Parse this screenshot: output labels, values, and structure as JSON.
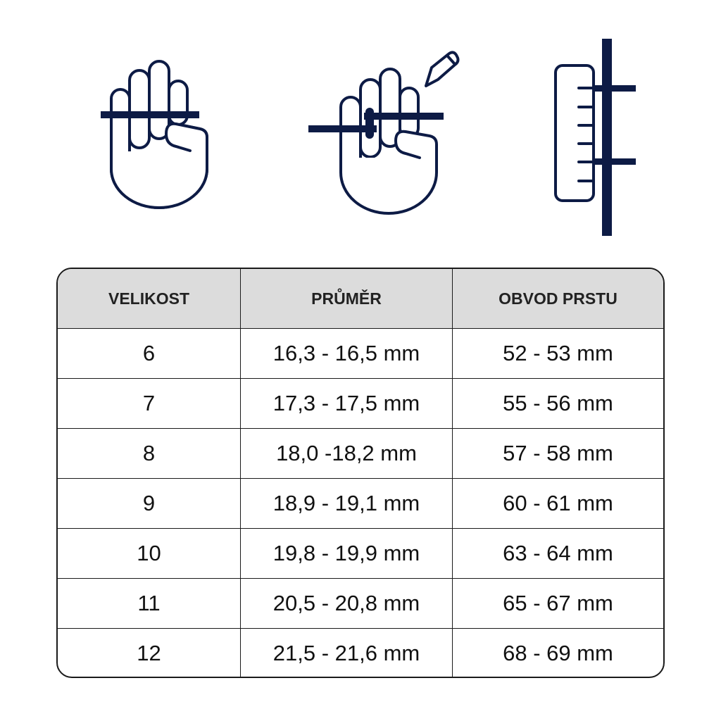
{
  "icons": [
    {
      "name": "hand-with-string-icon"
    },
    {
      "name": "hand-marking-string-icon"
    },
    {
      "name": "ruler-measure-icon"
    }
  ],
  "colors": {
    "icon": "#0d1b45",
    "header_bg": "#dcdcdc"
  },
  "table": {
    "headers": [
      "VELIKOST",
      "PRŮMĚR",
      "OBVOD PRSTU"
    ],
    "rows": [
      [
        "6",
        "16,3 - 16,5 mm",
        "52 - 53 mm"
      ],
      [
        "7",
        "17,3 - 17,5 mm",
        "55 - 56 mm"
      ],
      [
        "8",
        "18,0 -18,2 mm",
        "57 - 58 mm"
      ],
      [
        "9",
        "18,9 - 19,1 mm",
        "60 - 61 mm"
      ],
      [
        "10",
        "19,8 - 19,9 mm",
        "63 - 64 mm"
      ],
      [
        "11",
        "20,5 - 20,8 mm",
        "65 - 67 mm"
      ],
      [
        "12",
        "21,5 - 21,6 mm",
        "68 - 69 mm"
      ]
    ]
  }
}
